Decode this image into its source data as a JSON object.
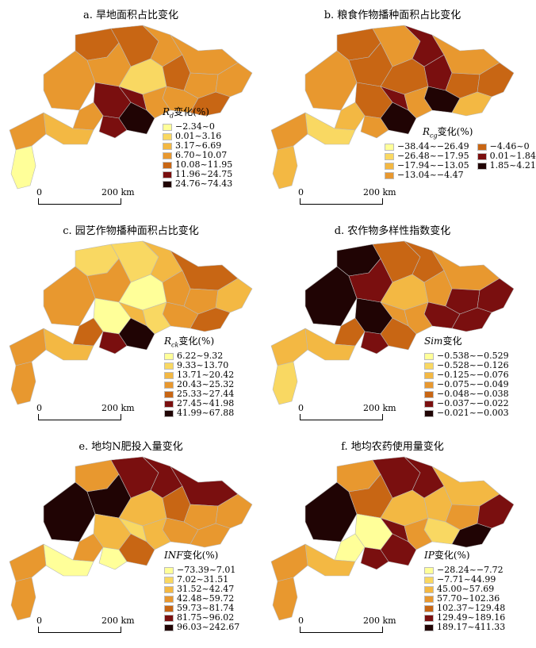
{
  "panels": [
    {
      "title": "a. 旱地面积占比变化",
      "legend_var": "R",
      "legend_sub": "d",
      "legend_suffix": "变化(%)",
      "classes": [
        {
          "label": "−2.34~0",
          "color": "#ffff99"
        },
        {
          "label": "0.01~3.16",
          "color": "#f9d862"
        },
        {
          "label": "3.17~6.69",
          "color": "#f3b843"
        },
        {
          "label": "6.70~10.07",
          "color": "#e8982f"
        },
        {
          "label": "10.08~11.95",
          "color": "#c86614"
        },
        {
          "label": "11.96~24.75",
          "color": "#7a0f0f"
        },
        {
          "label": "24.76~74.43",
          "color": "#200404"
        }
      ],
      "map_classes": [
        4,
        4,
        3,
        3,
        3,
        3,
        1,
        4,
        3,
        3,
        3,
        4,
        5,
        5,
        3,
        3,
        5,
        6,
        2,
        3,
        0
      ],
      "scale": {
        "zero": "0",
        "end": "200 km"
      }
    },
    {
      "title": "b. 粮食作物播种面积占比变化",
      "legend_var": "R",
      "legend_sub": "cg",
      "legend_suffix": "变化(%)",
      "classes": [
        {
          "label": "−38.44~−26.49",
          "color": "#ffff99"
        },
        {
          "label": "−26.48~−17.95",
          "color": "#f9d862"
        },
        {
          "label": "−17.94~−13.05",
          "color": "#f3b843"
        },
        {
          "label": "−13.04~−4.47",
          "color": "#e8982f"
        },
        {
          "label": "−4.46~0",
          "color": "#c86614"
        },
        {
          "label": "0.01~1.84",
          "color": "#7a0f0f"
        },
        {
          "label": "1.85~4.21",
          "color": "#200404"
        }
      ],
      "map_classes": [
        4,
        3,
        5,
        3,
        3,
        4,
        4,
        5,
        4,
        4,
        6,
        2,
        4,
        5,
        3,
        2,
        3,
        6,
        1,
        3,
        2
      ],
      "scale": {
        "zero": "0",
        "end": "200 km"
      }
    },
    {
      "title": "c. 园艺作物播种面积占比变化",
      "legend_var": "R",
      "legend_sub": "ck",
      "legend_suffix": "变化(%)",
      "classes": [
        {
          "label": "6.22~9.32",
          "color": "#ffff99"
        },
        {
          "label": "9.33~13.70",
          "color": "#f9d862"
        },
        {
          "label": "13.71~20.42",
          "color": "#f3b843"
        },
        {
          "label": "20.43~25.32",
          "color": "#e8982f"
        },
        {
          "label": "25.33~27.44",
          "color": "#c86614"
        },
        {
          "label": "27.45~41.98",
          "color": "#7a0f0f"
        },
        {
          "label": "41.99~67.88",
          "color": "#200404"
        }
      ],
      "map_classes": [
        1,
        1,
        2,
        4,
        3,
        3,
        0,
        3,
        3,
        2,
        3,
        4,
        0,
        2,
        1,
        4,
        5,
        6,
        2,
        3,
        3
      ],
      "scale": {
        "zero": "0",
        "end": "200 km"
      }
    },
    {
      "title": "d. 农作物多样性指数变化",
      "legend_var": "Sim",
      "legend_sub": "",
      "legend_suffix": "变化",
      "classes": [
        {
          "label": "−0.538~−0.529",
          "color": "#ffff99"
        },
        {
          "label": "−0.528~−0.126",
          "color": "#f9d862"
        },
        {
          "label": "−0.125~−0.076",
          "color": "#f3b843"
        },
        {
          "label": "−0.075~−0.049",
          "color": "#e8982f"
        },
        {
          "label": "−0.048~−0.038",
          "color": "#c86614"
        },
        {
          "label": "−0.037~−0.022",
          "color": "#7a0f0f"
        },
        {
          "label": "−0.021~−0.003",
          "color": "#200404"
        }
      ],
      "map_classes": [
        6,
        4,
        4,
        3,
        6,
        5,
        2,
        3,
        5,
        5,
        5,
        5,
        6,
        3,
        3,
        4,
        5,
        4,
        2,
        2,
        1
      ],
      "scale": {
        "zero": "0",
        "end": "200 km"
      }
    },
    {
      "title": "e. 地均N肥投入量变化",
      "legend_var": "INF",
      "legend_sub": "",
      "legend_suffix": "变化(%)",
      "classes": [
        {
          "label": "−73.39~7.01",
          "color": "#ffff99"
        },
        {
          "label": "7.02~31.51",
          "color": "#f9d862"
        },
        {
          "label": "31.52~42.47",
          "color": "#f3b843"
        },
        {
          "label": "42.48~59.72",
          "color": "#e8982f"
        },
        {
          "label": "59.73~81.74",
          "color": "#c86614"
        },
        {
          "label": "81.75~96.02",
          "color": "#7a0f0f"
        },
        {
          "label": "96.03~242.67",
          "color": "#200404"
        }
      ],
      "map_classes": [
        3,
        5,
        5,
        5,
        6,
        6,
        2,
        4,
        3,
        3,
        3,
        3,
        2,
        1,
        2,
        3,
        0,
        4,
        0,
        3,
        3
      ],
      "scale": {
        "zero": "0",
        "end": "200 km"
      }
    },
    {
      "title": "f. 地均农药使用量变化",
      "legend_var": "IP",
      "legend_sub": "",
      "legend_suffix": "变化(%)",
      "classes": [
        {
          "label": "−28.24~−7.72",
          "color": "#ffff99"
        },
        {
          "label": "−7.71~44.99",
          "color": "#f9d862"
        },
        {
          "label": "45.00~57.69",
          "color": "#f3b843"
        },
        {
          "label": "57.70~102.36",
          "color": "#e8982f"
        },
        {
          "label": "102.37~129.48",
          "color": "#c86614"
        },
        {
          "label": "129.49~189.16",
          "color": "#7a0f0f"
        },
        {
          "label": "189.17~411.33",
          "color": "#200404"
        }
      ],
      "map_classes": [
        3,
        5,
        5,
        2,
        6,
        4,
        2,
        2,
        3,
        5,
        1,
        6,
        0,
        5,
        3,
        0,
        5,
        5,
        2,
        3,
        3
      ],
      "scale": {
        "zero": "0",
        "end": "200 km"
      }
    }
  ]
}
